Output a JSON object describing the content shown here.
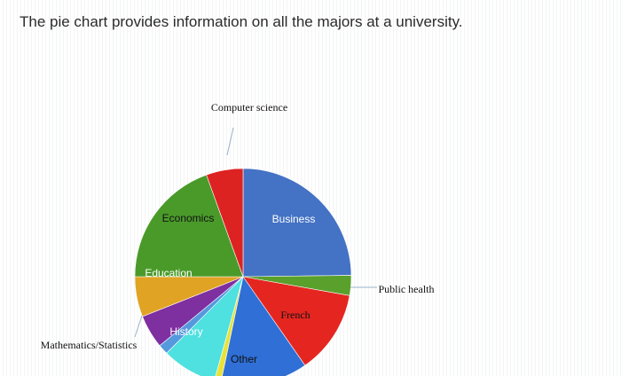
{
  "question": "The pie chart provides information on all the majors at a university.",
  "chart_data": {
    "type": "pie",
    "title": "",
    "slices": [
      {
        "label": "Business",
        "value": 24.8,
        "color": "#4472c4"
      },
      {
        "label": "Public health",
        "value": 3.0,
        "color": "#5aa02c"
      },
      {
        "label": "French",
        "value": 12.5,
        "color": "#e52620"
      },
      {
        "label": "Other",
        "value": 13.0,
        "color": "#2f6fd6"
      },
      {
        "label": "",
        "value": 1.0,
        "color": "#e8e23a"
      },
      {
        "label": "History",
        "value": 8.2,
        "color": "#4fe0e0"
      },
      {
        "label": "Mathematics/Statistics",
        "value": 1.5,
        "color": "#5599dd"
      },
      {
        "label": "",
        "value": 5.0,
        "color": "#7e2fa0"
      },
      {
        "label": "Education",
        "value": 6.0,
        "color": "#e0a324"
      },
      {
        "label": "Economics",
        "value": 19.5,
        "color": "#4a9a2a"
      },
      {
        "label": "Computer science",
        "value": 5.5,
        "color": "#dd2222"
      }
    ]
  }
}
